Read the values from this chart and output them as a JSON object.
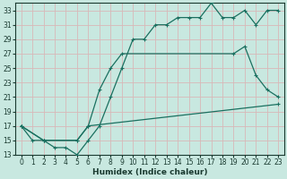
{
  "bg_color": "#c8e8e0",
  "grid_color": "#d8b8b8",
  "line_color": "#1a7060",
  "xlabel": "Humidex (Indice chaleur)",
  "xlim": [
    -0.5,
    23.5
  ],
  "ylim": [
    13,
    34
  ],
  "yticks": [
    13,
    15,
    17,
    19,
    21,
    23,
    25,
    27,
    29,
    31,
    33
  ],
  "xticks": [
    0,
    1,
    2,
    3,
    4,
    5,
    6,
    7,
    8,
    9,
    10,
    11,
    12,
    13,
    14,
    15,
    16,
    17,
    18,
    19,
    20,
    21,
    22,
    23
  ],
  "line1_x": [
    0,
    1,
    2,
    3,
    4,
    5,
    6,
    7,
    8,
    9,
    10,
    11,
    12,
    13,
    14,
    15,
    16,
    17,
    18,
    19,
    20,
    21,
    22,
    23
  ],
  "line1_y": [
    17,
    15,
    15,
    14,
    14,
    13,
    15,
    17,
    21,
    25,
    29,
    29,
    31,
    31,
    32,
    32,
    32,
    34,
    32,
    32,
    33,
    31,
    33,
    33
  ],
  "line2_x": [
    0,
    2,
    5,
    6,
    7,
    8,
    9,
    19,
    20,
    21,
    22,
    23
  ],
  "line2_y": [
    17,
    15,
    15,
    17,
    22,
    25,
    27,
    27,
    28,
    24,
    22,
    21
  ],
  "line3_x": [
    0,
    2,
    5,
    6,
    23
  ],
  "line3_y": [
    17,
    15,
    15,
    17,
    20
  ]
}
